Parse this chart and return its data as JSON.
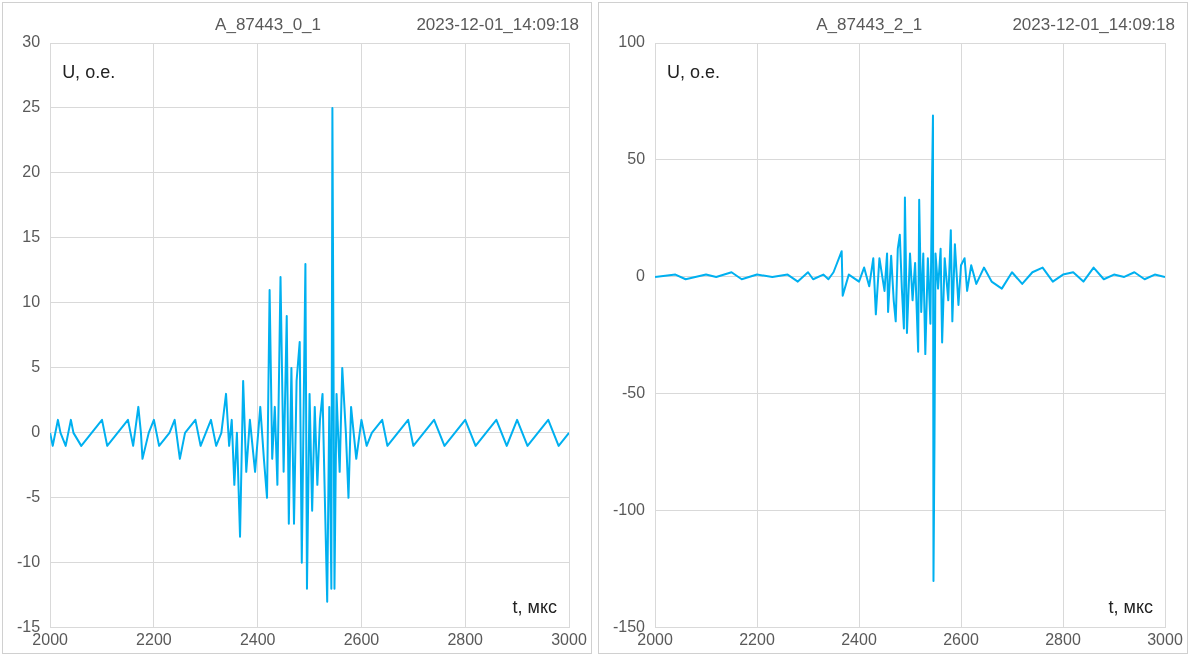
{
  "chart_data": [
    {
      "type": "line",
      "title": "A_87443_0_1",
      "subtitle": "2023-12-01_14:09:18",
      "xlabel": "t, мкс",
      "ylabel": "U, о.е.",
      "xlim": [
        2000,
        3000
      ],
      "xticks": [
        2000,
        2200,
        2400,
        2600,
        2800,
        3000
      ],
      "ylim": [
        -15,
        30
      ],
      "yticks": [
        -15,
        -10,
        -5,
        0,
        5,
        10,
        15,
        20,
        25,
        30
      ],
      "grid": true,
      "marker": "none",
      "line_style": "solid",
      "series": [
        {
          "color": "#00b0f0",
          "x": [
            2000,
            2005,
            2010,
            2015,
            2020,
            2030,
            2040,
            2045,
            2060,
            2080,
            2100,
            2110,
            2130,
            2150,
            2160,
            2170,
            2175,
            2178,
            2190,
            2200,
            2210,
            2230,
            2240,
            2250,
            2260,
            2280,
            2290,
            2300,
            2310,
            2320,
            2330,
            2339,
            2345,
            2350,
            2355,
            2360,
            2366,
            2372,
            2378,
            2385,
            2395,
            2405,
            2412,
            2418,
            2423,
            2428,
            2433,
            2438,
            2444,
            2450,
            2456,
            2460,
            2465,
            2470,
            2475,
            2481,
            2485,
            2492,
            2495,
            2500,
            2505,
            2510,
            2515,
            2520,
            2525,
            2530,
            2534,
            2538,
            2542,
            2544,
            2548,
            2552,
            2558,
            2563,
            2570,
            2575,
            2580,
            2590,
            2600,
            2610,
            2620,
            2640,
            2650,
            2670,
            2690,
            2700,
            2720,
            2740,
            2760,
            2780,
            2800,
            2820,
            2840,
            2860,
            2880,
            2900,
            2920,
            2940,
            2960,
            2980,
            3000
          ],
          "values": [
            0,
            -1,
            0,
            1,
            0,
            -1,
            1,
            0,
            -1,
            0,
            1,
            -1,
            0,
            1,
            -1,
            2,
            0,
            -2,
            0,
            1,
            -1,
            0,
            1,
            -2,
            0,
            1,
            -1,
            0,
            1,
            -1,
            0,
            3,
            -1,
            1,
            -4,
            0,
            -8,
            4,
            -3,
            1,
            -3,
            2,
            -2,
            -5,
            11,
            -2,
            2,
            -4,
            12,
            -3,
            9,
            -7,
            5,
            -7,
            4,
            7,
            -10,
            13,
            -12,
            3,
            -6,
            2,
            -4,
            1,
            3,
            -6,
            -13,
            2,
            -12,
            25,
            -12,
            3,
            -3,
            5,
            0,
            -5,
            2,
            -2,
            1,
            -1,
            0,
            1,
            -1,
            0,
            1,
            -1,
            0,
            1,
            -1,
            0,
            1,
            -1,
            0,
            1,
            -1,
            1,
            -1,
            0,
            1,
            -1,
            0
          ]
        }
      ]
    },
    {
      "type": "line",
      "title": "A_87443_2_1",
      "subtitle": "2023-12-01_14:09:18",
      "xlabel": "t, мкс",
      "ylabel": "U, о.е.",
      "xlim": [
        2000,
        3000
      ],
      "xticks": [
        2000,
        2200,
        2400,
        2600,
        2800,
        3000
      ],
      "ylim": [
        -150,
        100
      ],
      "yticks": [
        -150,
        -100,
        -50,
        0,
        50,
        100
      ],
      "grid": true,
      "marker": "none",
      "line_style": "solid",
      "series": [
        {
          "color": "#00b0f0",
          "x": [
            2000,
            2040,
            2060,
            2100,
            2120,
            2150,
            2170,
            2200,
            2230,
            2260,
            2280,
            2300,
            2310,
            2330,
            2340,
            2350,
            2366,
            2368,
            2380,
            2400,
            2410,
            2420,
            2428,
            2433,
            2440,
            2450,
            2455,
            2457,
            2463,
            2468,
            2472,
            2476,
            2480,
            2484,
            2488,
            2490,
            2494,
            2500,
            2505,
            2510,
            2516,
            2518,
            2522,
            2526,
            2530,
            2535,
            2540,
            2543,
            2545,
            2546,
            2548,
            2550,
            2555,
            2560,
            2563,
            2568,
            2575,
            2580,
            2583,
            2588,
            2595,
            2600,
            2607,
            2612,
            2620,
            2630,
            2645,
            2660,
            2680,
            2700,
            2720,
            2740,
            2760,
            2780,
            2800,
            2820,
            2840,
            2860,
            2880,
            2900,
            2920,
            2940,
            2960,
            2980,
            3000
          ],
          "values": [
            0,
            1,
            -1,
            1,
            0,
            2,
            -1,
            1,
            0,
            1,
            -2,
            2,
            -1,
            1,
            -1,
            2,
            11,
            -8,
            1,
            -2,
            4,
            -4,
            8,
            -16,
            8,
            -6,
            10,
            -15,
            9,
            -10,
            -19,
            12,
            18,
            -5,
            -22,
            34,
            -24,
            10,
            -10,
            6,
            -32,
            33,
            -15,
            10,
            -33,
            8,
            -20,
            38,
            69,
            -130,
            -70,
            10,
            -5,
            12,
            -28,
            8,
            -10,
            20,
            -19,
            14,
            -12,
            5,
            8,
            -6,
            5,
            -3,
            4,
            -2,
            -5,
            2,
            -3,
            2,
            4,
            -2,
            1,
            2,
            -2,
            4,
            -1,
            1,
            0,
            2,
            -1,
            1,
            0
          ]
        }
      ]
    }
  ]
}
